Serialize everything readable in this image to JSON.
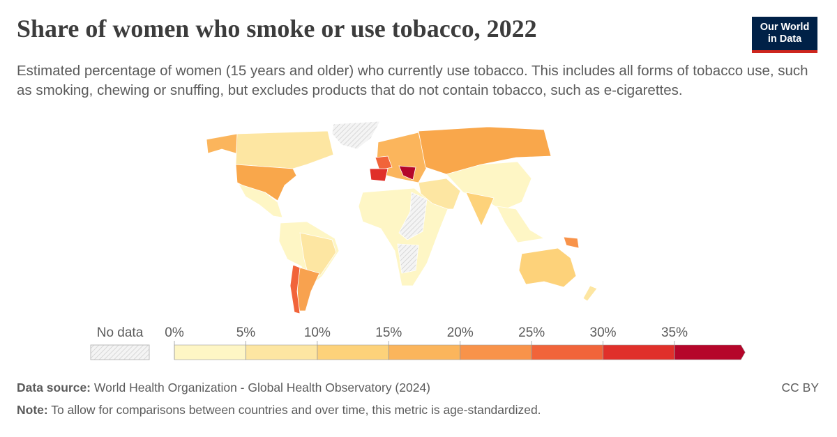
{
  "header": {
    "title": "Share of women who smoke or use tobacco, 2022",
    "subtitle": "Estimated percentage of women (15 years and older) who currently use tobacco. This includes all forms of tobacco use, such as smoking, chewing or snuffing, but excludes products that do not contain tobacco, such as e-cigarettes.",
    "logo": [
      "Our World",
      "in Data"
    ]
  },
  "legend": {
    "no_data": "No data",
    "ticks": [
      {
        "value": 0,
        "label": "0%"
      },
      {
        "value": 5,
        "label": "5%"
      },
      {
        "value": 10,
        "label": "10%"
      },
      {
        "value": 15,
        "label": "15%"
      },
      {
        "value": 20,
        "label": "20%"
      },
      {
        "value": 25,
        "label": "25%"
      },
      {
        "value": 30,
        "label": "30%"
      },
      {
        "value": 35,
        "label": "35%"
      }
    ],
    "bin_colors": [
      "#fef6c5",
      "#fde6a2",
      "#fdd27a",
      "#fbb55c",
      "#f8934a",
      "#f1643a",
      "#e0302a",
      "#b5062a"
    ]
  },
  "footer": {
    "source_label": "Data source:",
    "source": "World Health Organization - Global Health Observatory (2024)",
    "license": "CC BY",
    "note_label": "Note:",
    "note": "To allow for comparisons between countries and over time, this metric is age-standardized."
  }
}
